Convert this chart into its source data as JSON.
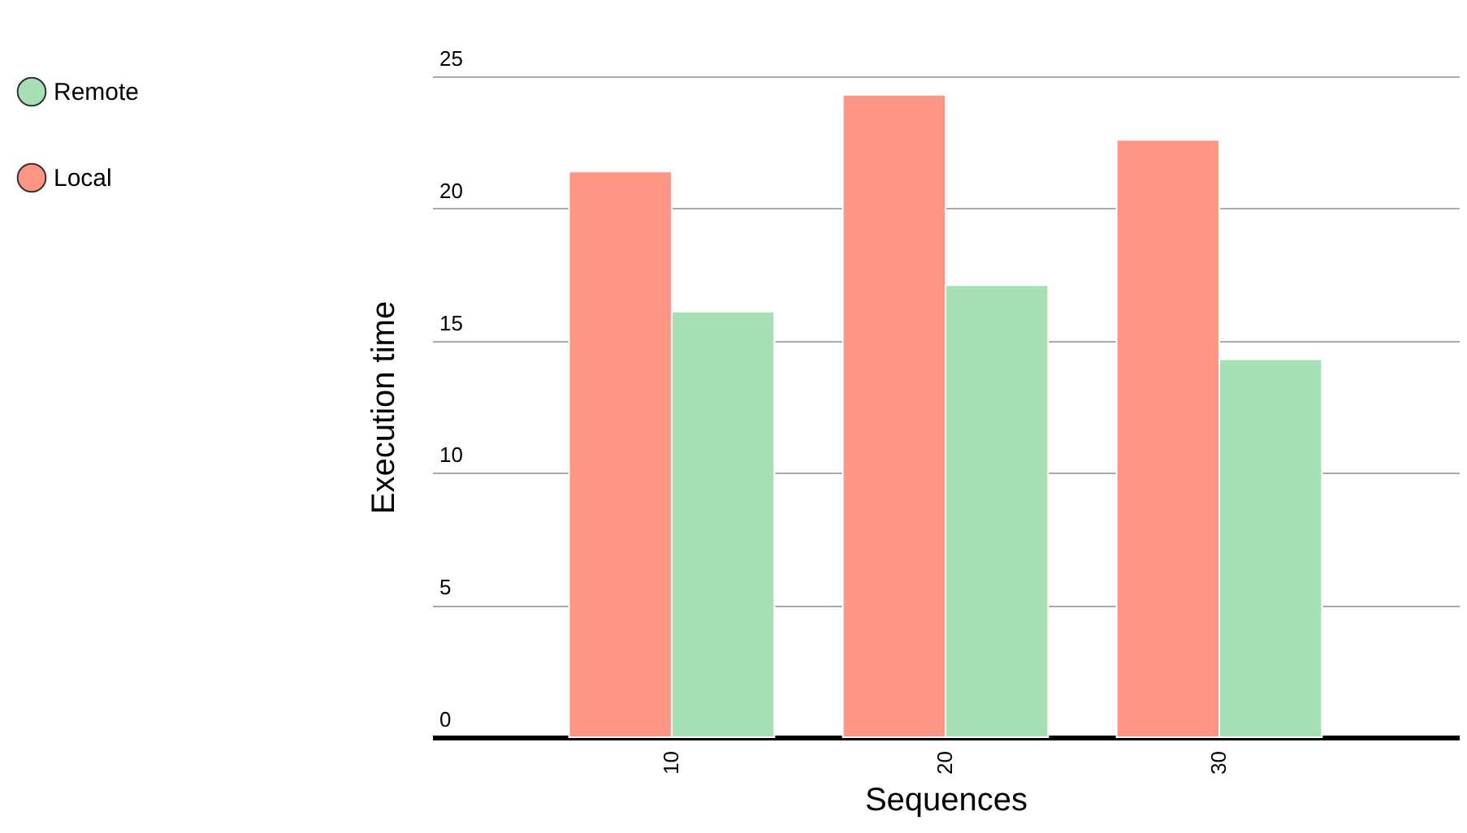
{
  "chart_data": {
    "type": "bar",
    "xlabel": "Sequences",
    "ylabel": "Execution time",
    "categories": [
      "10",
      "20",
      "30"
    ],
    "series": [
      {
        "name": "Local",
        "color": "#fe9484",
        "values": [
          21.4,
          24.3,
          22.6
        ]
      },
      {
        "name": "Remote",
        "color": "#a8e0b5",
        "values": [
          16.1,
          17.1,
          14.3
        ]
      }
    ],
    "ylim": [
      0,
      25
    ],
    "yticks": [
      0,
      5,
      10,
      15,
      20,
      25
    ],
    "grid": "y",
    "legend": "left"
  }
}
